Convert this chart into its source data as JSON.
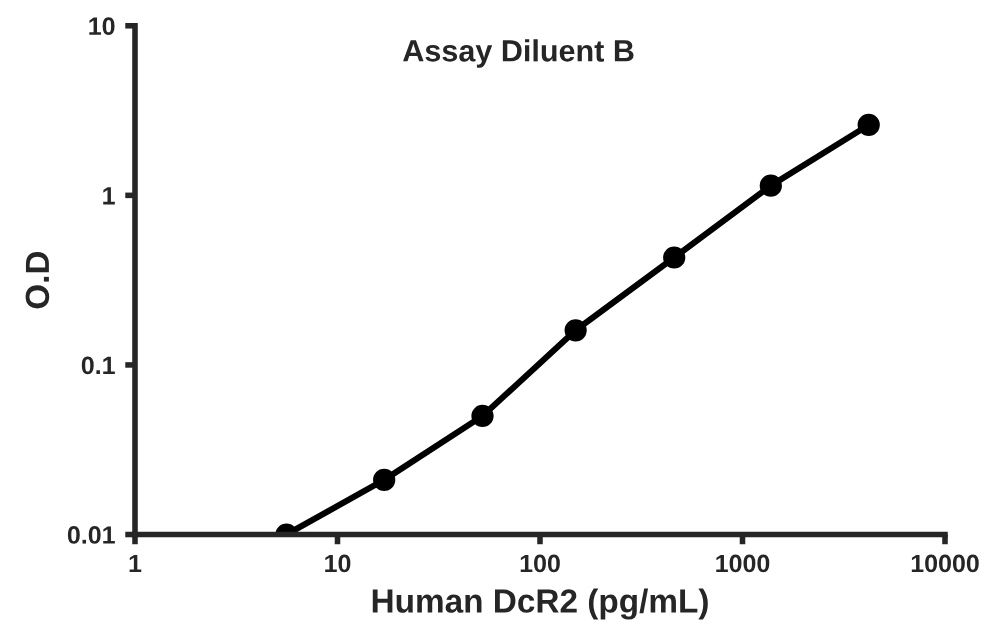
{
  "chart_data": {
    "type": "line",
    "title": "Assay Diluent B",
    "xlabel": "Human DcR2 (pg/mL)",
    "ylabel": "O.D",
    "log": "xy",
    "x": [
      5.6,
      17,
      52,
      150,
      460,
      1380,
      4200
    ],
    "series": [
      {
        "color": "#000000",
        "values": [
          0.01,
          0.021,
          0.05,
          0.16,
          0.43,
          1.14,
          2.6
        ]
      }
    ],
    "xlim": [
      1,
      10000
    ],
    "xticks": [
      1,
      10,
      100,
      1000,
      10000
    ],
    "ylim": [
      0.01,
      10
    ],
    "yticks": [
      0.01,
      0.1,
      1,
      10
    ],
    "marker": "circle",
    "line_style": "solid",
    "grid": false,
    "legend": false
  }
}
